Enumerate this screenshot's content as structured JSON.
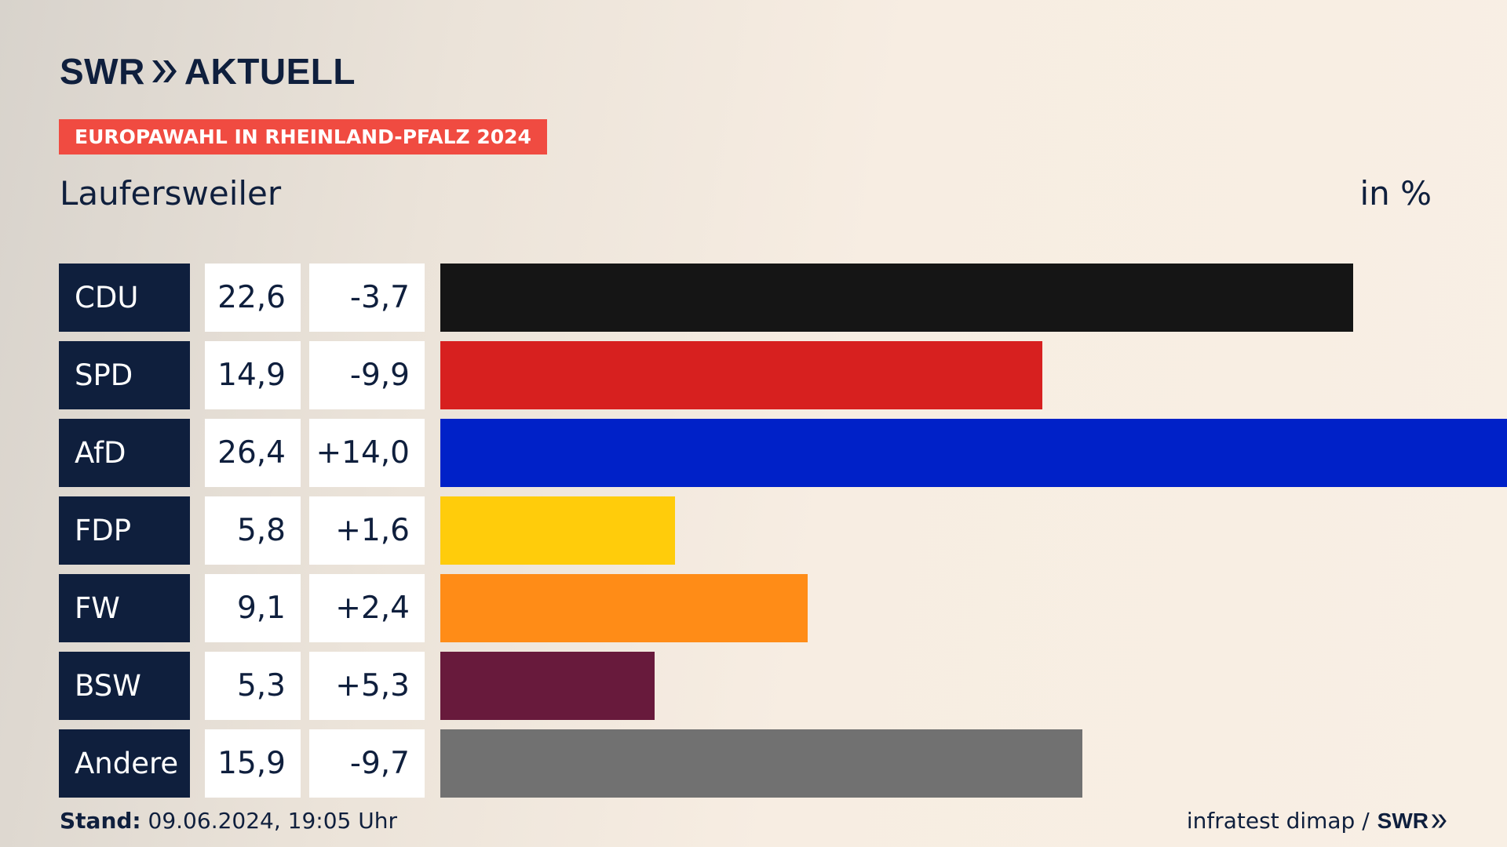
{
  "brand": {
    "swr": "SWR",
    "aktuell": "AKTUELL"
  },
  "header": {
    "tag": "EUROPAWAHL IN RHEINLAND-PFALZ 2024",
    "subtitle": "Laufersweiler",
    "unit": "in %"
  },
  "chart_data": {
    "type": "bar",
    "orientation": "horizontal",
    "categories": [
      "CDU",
      "SPD",
      "AfD",
      "FDP",
      "FW",
      "BSW",
      "Andere"
    ],
    "values": [
      22.6,
      14.9,
      26.4,
      5.8,
      9.1,
      5.3,
      15.9
    ],
    "value_labels": [
      "22,6",
      "14,9",
      "26,4",
      "5,8",
      "9,1",
      "5,3",
      "15,9"
    ],
    "change_labels": [
      "-3,7",
      "-9,9",
      "+14,0",
      "+1,6",
      "+2,4",
      "+5,3",
      "-9,7"
    ],
    "colors": [
      "#151515",
      "#d7201f",
      "#0021c8",
      "#ffcc0b",
      "#ff8c17",
      "#681a3c",
      "#717171"
    ],
    "xlim": [
      0,
      26.4
    ]
  },
  "footer": {
    "stand_label": "Stand:",
    "stand_value": "09.06.2024, 19:05 Uhr",
    "source": "infratest dimap /",
    "source_logo": "SWR"
  }
}
